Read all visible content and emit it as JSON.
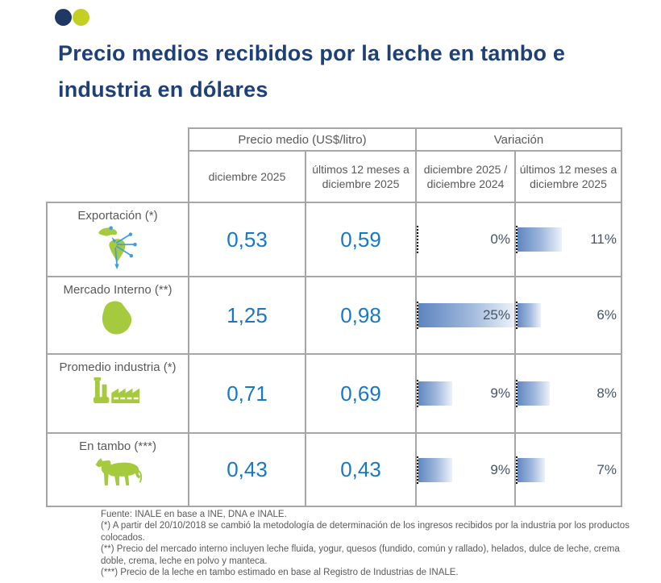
{
  "title_lines": [
    "Precio medios recibidos por la leche en tambo e",
    "industria en dólares"
  ],
  "colors": {
    "title_navy": "#1e4078",
    "dot_navy": "#1f3864",
    "dot_green": "#c3d021",
    "text_gray": "#595959",
    "border_gray": "#a6a6a6",
    "value_blue": "#1878c6",
    "pct_navy": "#44546a",
    "bar_blue": "#5b83bf",
    "bar_fade": "#edf2f9",
    "icon_green": "#a6ca3d",
    "arrow_blue": "#3f9edc"
  },
  "table": {
    "group_headers": [
      {
        "label": "Precio medio (US$/litro)"
      },
      {
        "label": "Variación"
      }
    ],
    "col_headers": [
      "diciembre 2025",
      "últimos 12 meses a diciembre 2025",
      "diciembre 2025 / diciembre 2024",
      "últimos 12 meses a diciembre 2025"
    ],
    "bar_max": 25,
    "rows": [
      {
        "label": "Exportación (*)",
        "icon": "americas-export-icon",
        "price_dec": "0,53",
        "price_12m": "0,59",
        "var_yoy": 0,
        "var_yoy_label": "0%",
        "var_12m": 11,
        "var_12m_label": "11%"
      },
      {
        "label": "Mercado Interno (**)",
        "icon": "uruguay-map-icon",
        "price_dec": "1,25",
        "price_12m": "0,98",
        "var_yoy": 25,
        "var_yoy_label": "25%",
        "var_12m": 6,
        "var_12m_label": "6%"
      },
      {
        "label": "Promedio industria (*)",
        "icon": "factory-icon",
        "price_dec": "0,71",
        "price_12m": "0,69",
        "var_yoy": 9,
        "var_yoy_label": "9%",
        "var_12m": 8,
        "var_12m_label": "8%"
      },
      {
        "label": "En tambo (***)",
        "icon": "cow-icon",
        "price_dec": "0,43",
        "price_12m": "0,43",
        "var_yoy": 9,
        "var_yoy_label": "9%",
        "var_12m": 7,
        "var_12m_label": "7%"
      }
    ]
  },
  "footnotes": [
    "Fuente: INALE en base a INE, DNA e INALE.",
    "(*) A partir del 20/10/2018 se cambió la metodología de determinación de los ingresos recibidos por la industria por los productos colocados.",
    "(**) Precio del mercado interno incluyen leche fluida, yogur, quesos (fundido, común y rallado), helados, dulce de leche, crema doble, crema, leche en polvo y manteca.",
    "(***) Precio de la leche en tambo estimado en base al Registro de Industrias de INALE."
  ]
}
